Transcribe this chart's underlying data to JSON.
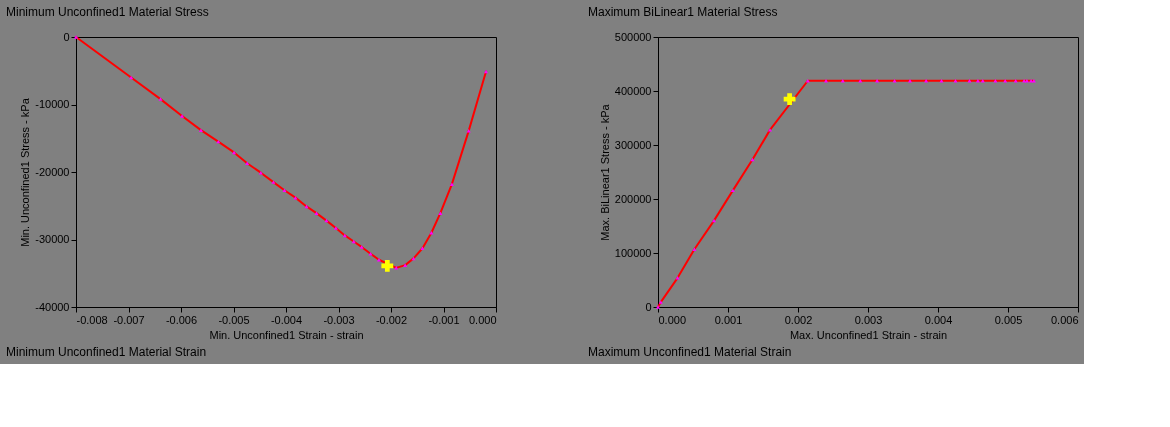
{
  "chart_data": [
    {
      "type": "line",
      "title": "Minimum Unconfined1 Material Stress",
      "xlabel": "Min. Unconfined1 Strain - strain",
      "ylabel": "Min. Unconfined1 Stress - kPa",
      "annotations": [
        "Minimum Unconfined1 Material Strain"
      ],
      "xlim": [
        -0.008,
        0
      ],
      "xticks": [
        -0.008,
        -0.007,
        -0.006,
        -0.005,
        -0.004,
        -0.003,
        -0.002,
        -0.001,
        {
          "value": 0,
          "label": "0.000"
        }
      ],
      "ylim": [
        -40000,
        0
      ],
      "yticks": [
        -40000,
        -30000,
        -20000,
        -10000,
        0
      ],
      "grid": false,
      "series": [
        {
          "type": "line",
          "color": "#ff0000",
          "marker": "none",
          "x": [
            -0.008,
            -0.00695,
            -0.00639,
            -0.00598,
            -0.00562,
            -0.00529,
            -0.00499,
            -0.00474,
            -0.00448,
            -0.00424,
            -0.00403,
            -0.00382,
            -0.00361,
            -0.00342,
            -0.00323,
            -0.00305,
            -0.00288,
            -0.00271,
            -0.00256,
            -0.00239,
            -0.00223,
            -0.0019,
            -0.00173,
            -0.00157,
            -0.0014,
            -0.00123,
            -0.00106,
            -0.00084,
            -0.00052,
            -0.00019
          ],
          "values": [
            0,
            -6000,
            -9200,
            -11700,
            -13800,
            -15500,
            -17100,
            -18700,
            -20100,
            -21500,
            -22700,
            -23800,
            -25100,
            -26100,
            -27200,
            -28300,
            -29400,
            -30300,
            -31100,
            -32100,
            -33000,
            -34200,
            -33800,
            -32800,
            -31300,
            -29000,
            -26100,
            -21800,
            -13900,
            -5100
          ]
        },
        {
          "type": "scatter",
          "color": "#ff00ff",
          "marker": "triangle",
          "x": [
            -0.008,
            -0.00695,
            -0.00639,
            -0.00598,
            -0.00562,
            -0.00529,
            -0.00499,
            -0.00474,
            -0.00448,
            -0.00424,
            -0.00403,
            -0.00382,
            -0.00361,
            -0.00342,
            -0.00323,
            -0.00305,
            -0.00288,
            -0.00271,
            -0.00256,
            -0.00239,
            -0.00223,
            -0.0019,
            -0.00173,
            -0.00157,
            -0.0014,
            -0.00123,
            -0.00106,
            -0.00084,
            -0.00052,
            -0.00019
          ],
          "values": [
            0,
            -6000,
            -9200,
            -11700,
            -13800,
            -15500,
            -17100,
            -18700,
            -20100,
            -21500,
            -22700,
            -23800,
            -25100,
            -26100,
            -27200,
            -28300,
            -29400,
            -30300,
            -31100,
            -32100,
            -33000,
            -34200,
            -33800,
            -32800,
            -31300,
            -29000,
            -26100,
            -21800,
            -13900,
            -5100
          ]
        },
        {
          "type": "scatter",
          "color": "#ffff00",
          "marker": "cross",
          "x": [
            -0.00207
          ],
          "values": [
            -33900
          ]
        }
      ]
    },
    {
      "type": "line",
      "title": "Maximum BiLinear1 Material Stress",
      "xlabel": "Max. Unconfined1 Strain - strain",
      "ylabel": "Max. BiLinear1 Stress - kPa",
      "annotations": [
        "Maximum Unconfined1 Material Strain"
      ],
      "xlim": [
        0,
        0.006
      ],
      "xticks": [
        {
          "value": 0,
          "label": "0.000"
        },
        0.001,
        0.002,
        0.003,
        0.004,
        0.005,
        0.006
      ],
      "ylim": [
        0,
        500000
      ],
      "yticks": [
        0,
        100000,
        200000,
        300000,
        400000,
        500000
      ],
      "grid": false,
      "series": [
        {
          "type": "line",
          "color": "#ff0000",
          "marker": "none",
          "x": [
            0,
            4e-05,
            0.00028,
            0.00052,
            0.0008,
            0.00107,
            0.00135,
            0.0016,
            0.00214,
            0.0024,
            0.00264,
            0.00289,
            0.00313,
            0.00338,
            0.0036,
            0.00383,
            0.00405,
            0.00425,
            0.00445,
            0.00457,
            0.00464,
            0.00482,
            0.00496,
            0.00511,
            0.00523,
            0.00527,
            0.00533,
            0.00537
          ],
          "values": [
            0,
            9000,
            54000,
            107000,
            160000,
            216000,
            273000,
            328000,
            419000,
            419000,
            419000,
            419000,
            419000,
            419000,
            419000,
            419000,
            419000,
            419000,
            419000,
            419000,
            419000,
            419000,
            419000,
            419000,
            419000,
            419000,
            419000,
            419000
          ]
        },
        {
          "type": "scatter",
          "color": "#ff00ff",
          "marker": "triangle",
          "x": [
            0,
            4e-05,
            0.00028,
            0.00052,
            0.0008,
            0.00107,
            0.00135,
            0.0016,
            0.00214,
            0.0024,
            0.00264,
            0.00289,
            0.00313,
            0.00338,
            0.0036,
            0.00383,
            0.00405,
            0.00425,
            0.00445,
            0.00457,
            0.00464,
            0.00482,
            0.00496,
            0.00511,
            0.00523,
            0.00527,
            0.00533,
            0.00537
          ],
          "values": [
            0,
            9000,
            54000,
            107000,
            160000,
            216000,
            273000,
            328000,
            419000,
            419000,
            419000,
            419000,
            419000,
            419000,
            419000,
            419000,
            419000,
            419000,
            419000,
            419000,
            419000,
            419000,
            419000,
            419000,
            419000,
            419000,
            419000,
            419000
          ]
        },
        {
          "type": "scatter",
          "color": "#ffff00",
          "marker": "cross",
          "x": [
            0.00188
          ],
          "values": [
            385000
          ]
        }
      ]
    }
  ]
}
